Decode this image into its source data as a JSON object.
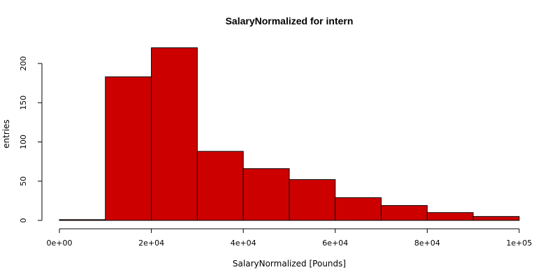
{
  "chart_data": {
    "type": "bar",
    "subtype": "histogram",
    "title": "SalaryNormalized for intern",
    "xlabel": "SalaryNormalized [Pounds]",
    "ylabel": "entries",
    "bin_edges": [
      0,
      10000,
      20000,
      30000,
      40000,
      50000,
      60000,
      70000,
      80000,
      90000,
      100000
    ],
    "values": [
      1,
      183,
      220,
      88,
      66,
      52,
      29,
      19,
      10,
      5
    ],
    "xlim": [
      0,
      100000
    ],
    "ylim": [
      0,
      220
    ],
    "x_ticks": [
      {
        "value": 0,
        "label": "0e+00"
      },
      {
        "value": 20000,
        "label": "2e+04"
      },
      {
        "value": 40000,
        "label": "4e+04"
      },
      {
        "value": 60000,
        "label": "6e+04"
      },
      {
        "value": 80000,
        "label": "8e+04"
      },
      {
        "value": 100000,
        "label": "1e+05"
      }
    ],
    "y_ticks": [
      {
        "value": 0,
        "label": "0"
      },
      {
        "value": 50,
        "label": "50"
      },
      {
        "value": 100,
        "label": "100"
      },
      {
        "value": 150,
        "label": "150"
      },
      {
        "value": 200,
        "label": "200"
      }
    ],
    "bar_color": "#cd0000",
    "edge_color": "#000000",
    "grid": false,
    "legend": "none"
  }
}
